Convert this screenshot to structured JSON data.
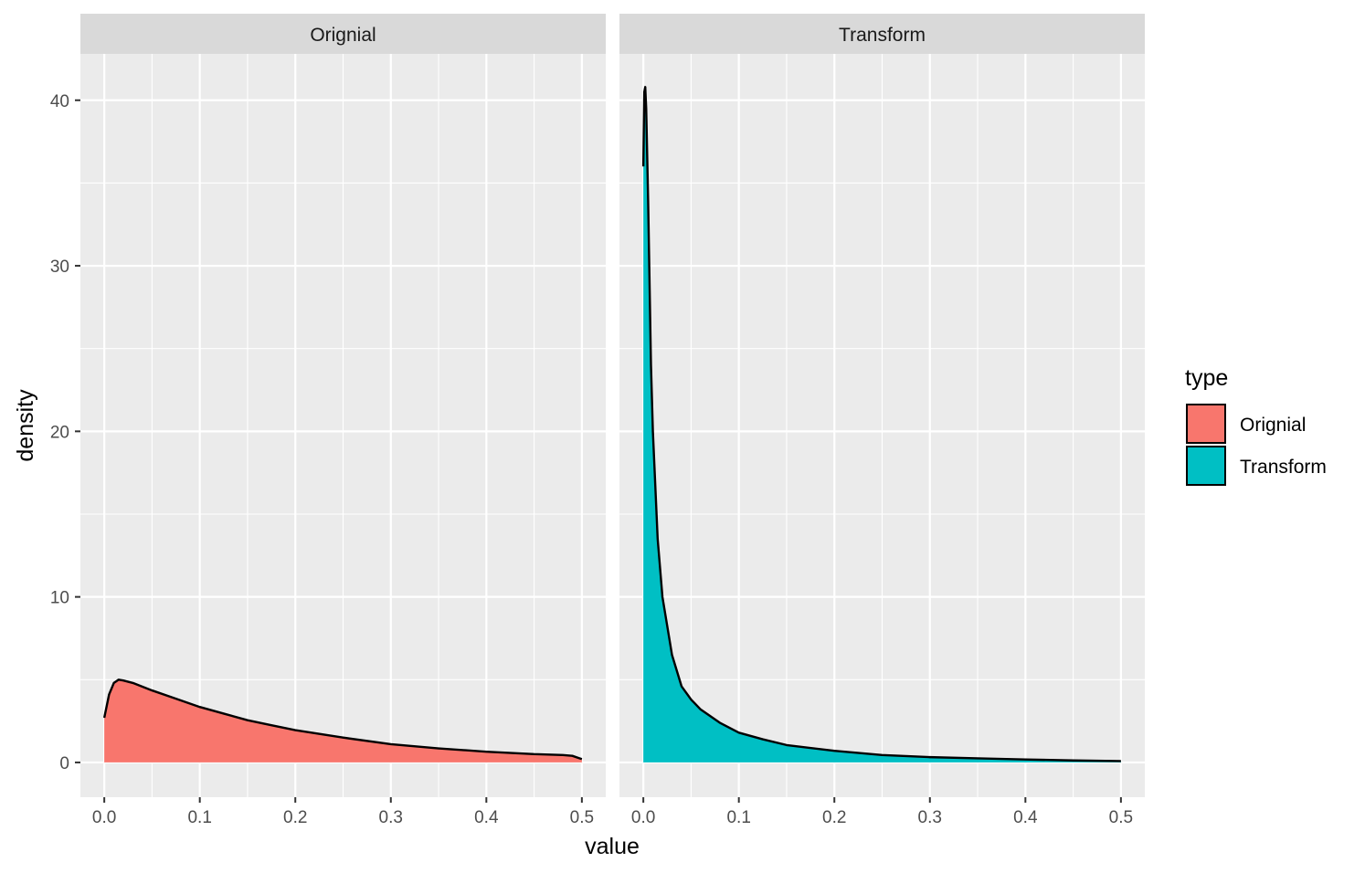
{
  "chart_data": {
    "type": "area",
    "facets": [
      "Orignial",
      "Transform"
    ],
    "xlabel": "value",
    "ylabel": "density",
    "xlim": [
      -0.025,
      0.525
    ],
    "ylim": [
      -2.1,
      42.8
    ],
    "x_ticks": [
      0.0,
      0.1,
      0.2,
      0.3,
      0.4,
      0.5
    ],
    "x_tick_labels": [
      "0.0",
      "0.1",
      "0.2",
      "0.3",
      "0.4",
      "0.5"
    ],
    "y_ticks": [
      0,
      10,
      20,
      30,
      40
    ],
    "y_tick_labels": [
      "0",
      "10",
      "20",
      "30",
      "40"
    ],
    "grid": true,
    "legend": {
      "title": "type",
      "position": "right",
      "entries": [
        {
          "label": "Orignial",
          "color": "#F8766D"
        },
        {
          "label": "Transform",
          "color": "#00BFC4"
        }
      ]
    },
    "series": [
      {
        "name": "Orignial",
        "facet": 0,
        "color": "#F8766D",
        "x": [
          0.0,
          0.005,
          0.01,
          0.015,
          0.02,
          0.03,
          0.05,
          0.075,
          0.1,
          0.125,
          0.15,
          0.175,
          0.2,
          0.25,
          0.3,
          0.35,
          0.4,
          0.45,
          0.48,
          0.49,
          0.5
        ],
        "y": [
          2.7,
          4.1,
          4.8,
          5.0,
          4.95,
          4.8,
          4.35,
          3.85,
          3.35,
          2.95,
          2.55,
          2.25,
          1.95,
          1.5,
          1.1,
          0.85,
          0.65,
          0.5,
          0.45,
          0.4,
          0.2
        ]
      },
      {
        "name": "Transform",
        "facet": 1,
        "color": "#00BFC4",
        "x": [
          0.0,
          0.001,
          0.002,
          0.003,
          0.005,
          0.008,
          0.01,
          0.015,
          0.02,
          0.03,
          0.04,
          0.05,
          0.06,
          0.08,
          0.1,
          0.125,
          0.15,
          0.2,
          0.25,
          0.3,
          0.35,
          0.4,
          0.45,
          0.5
        ],
        "y": [
          36.0,
          40.5,
          40.8,
          39.5,
          34.0,
          24.0,
          20.0,
          13.5,
          10.0,
          6.5,
          4.6,
          3.8,
          3.2,
          2.4,
          1.8,
          1.4,
          1.05,
          0.7,
          0.45,
          0.32,
          0.25,
          0.18,
          0.12,
          0.08
        ]
      }
    ]
  }
}
